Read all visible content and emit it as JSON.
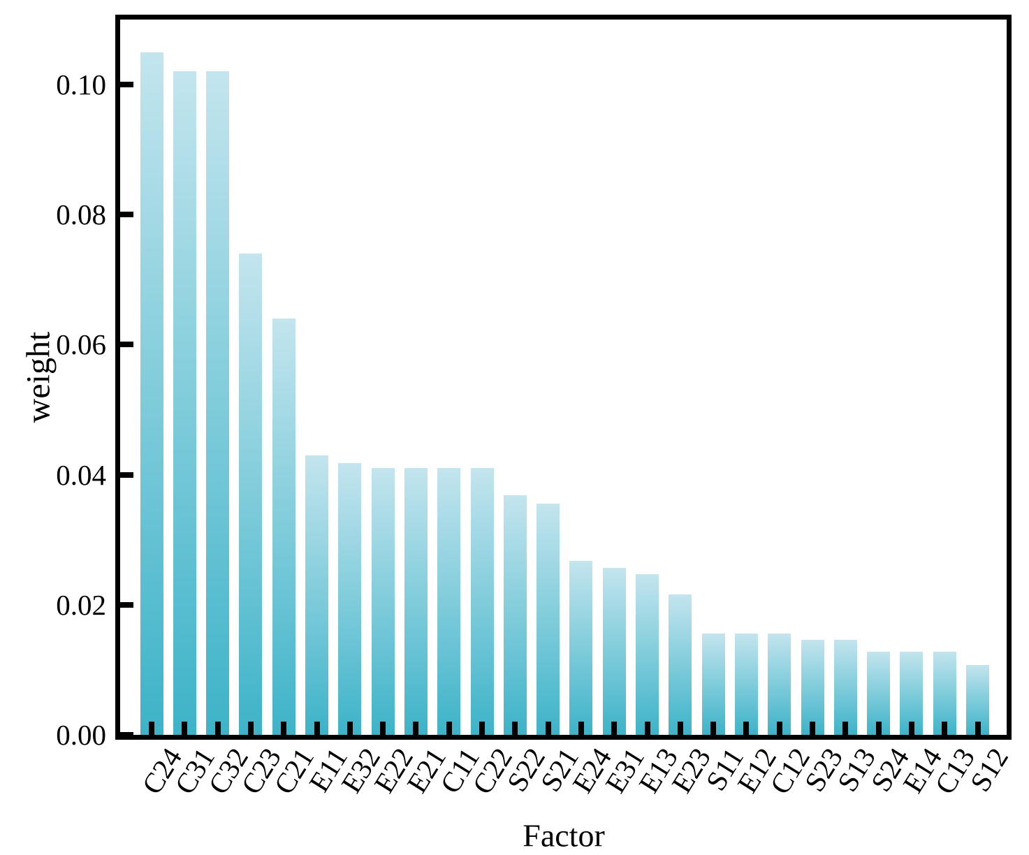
{
  "chart_data": {
    "type": "bar",
    "title": "",
    "xlabel": "Factor",
    "ylabel": "weight",
    "categories": [
      "C24",
      "C31",
      "C32",
      "C23",
      "C21",
      "E11",
      "E32",
      "E22",
      "E21",
      "C11",
      "C22",
      "S22",
      "S21",
      "E24",
      "E31",
      "E13",
      "E23",
      "S11",
      "E12",
      "C12",
      "S23",
      "S13",
      "S24",
      "E14",
      "C13",
      "S12"
    ],
    "values": [
      0.105,
      0.102,
      0.102,
      0.074,
      0.064,
      0.043,
      0.0418,
      0.041,
      0.041,
      0.041,
      0.041,
      0.0369,
      0.0356,
      0.0267,
      0.0257,
      0.0247,
      0.0216,
      0.0156,
      0.0156,
      0.0156,
      0.0146,
      0.0146,
      0.0128,
      0.0128,
      0.0128,
      0.0107
    ],
    "ylim": [
      0,
      0.11
    ],
    "yticks": [
      0.0,
      0.02,
      0.04,
      0.06,
      0.08,
      0.1
    ],
    "ytick_labels": [
      "0.00",
      "0.02",
      "0.04",
      "0.06",
      "0.08",
      "0.10"
    ],
    "grid": false,
    "legend": null,
    "colors": {
      "bar_gradient_top": "#c3e5ee",
      "bar_gradient_bottom": "#3db3c8",
      "spine": "#000000",
      "background": "#ffffff",
      "text": "#000000"
    }
  }
}
